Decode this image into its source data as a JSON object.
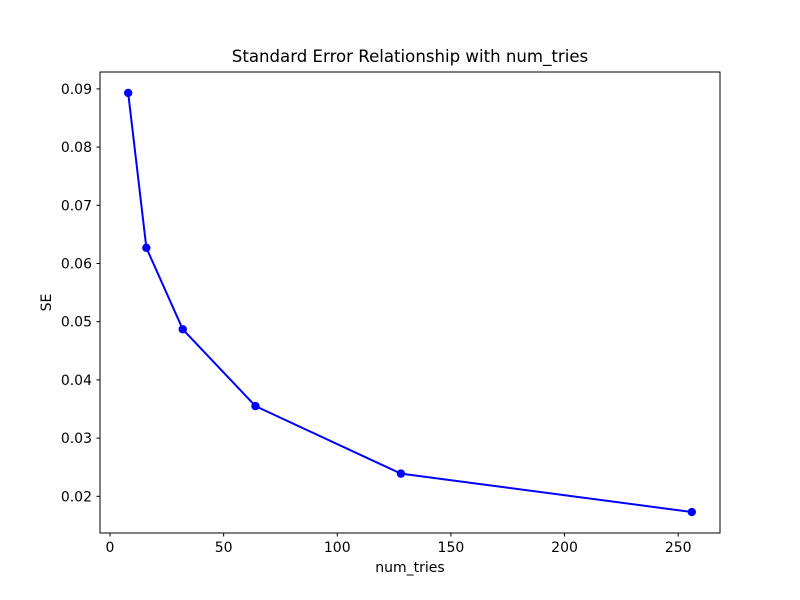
{
  "figure": {
    "background": "#ffffff"
  },
  "chart_data": {
    "type": "line",
    "title": "Standard Error Relationship with num_tries",
    "xlabel": "num_tries",
    "ylabel": "SE",
    "x": [
      8,
      16,
      32,
      64,
      128,
      256
    ],
    "series": [
      {
        "name": "SE",
        "values": [
          0.0893,
          0.0627,
          0.0487,
          0.0355,
          0.0239,
          0.0173
        ],
        "color": "#0000ff",
        "marker": "circle",
        "line_width": 2,
        "marker_radius": 4.2
      }
    ],
    "xticks": [
      0,
      50,
      100,
      150,
      200,
      250
    ],
    "yticks": [
      0.02,
      0.03,
      0.04,
      0.05,
      0.06,
      0.07,
      0.08,
      0.09
    ],
    "ytick_decimals": 2,
    "xlim": [
      -4.4,
      268.4
    ],
    "ylim": [
      0.0137,
      0.0929
    ],
    "grid": false,
    "legend": "none",
    "spine_color": "#000000",
    "tick_length": 3.5
  }
}
